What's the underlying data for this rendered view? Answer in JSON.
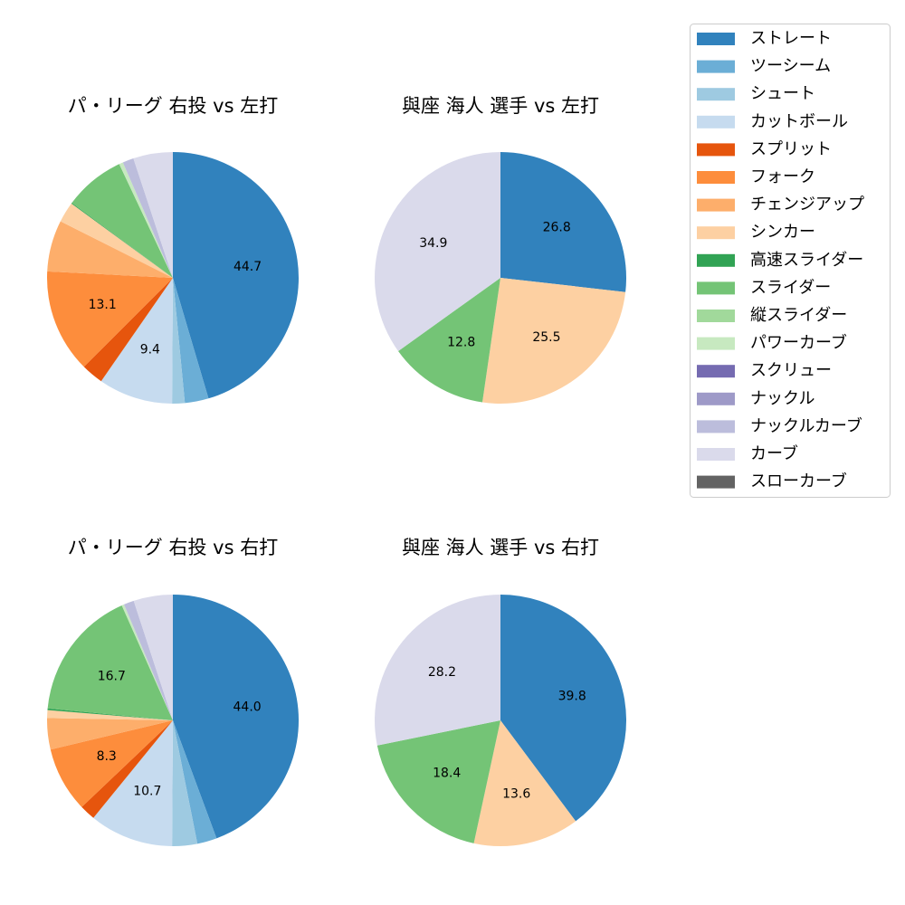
{
  "legend": {
    "placement": "top-right",
    "entries": [
      {
        "label": "ストレート",
        "color": "#3182bd"
      },
      {
        "label": "ツーシーム",
        "color": "#6baed6"
      },
      {
        "label": "シュート",
        "color": "#9ecae1"
      },
      {
        "label": "カットボール",
        "color": "#c6dbef"
      },
      {
        "label": "スプリット",
        "color": "#e6550d"
      },
      {
        "label": "フォーク",
        "color": "#fd8d3c"
      },
      {
        "label": "チェンジアップ",
        "color": "#fdae6b"
      },
      {
        "label": "シンカー",
        "color": "#fdd0a2"
      },
      {
        "label": "高速スライダー",
        "color": "#31a354"
      },
      {
        "label": "スライダー",
        "color": "#74c476"
      },
      {
        "label": "縦スライダー",
        "color": "#a1d99b"
      },
      {
        "label": "パワーカーブ",
        "color": "#c7e9c0"
      },
      {
        "label": "スクリュー",
        "color": "#756bb1"
      },
      {
        "label": "ナックル",
        "color": "#9e9ac8"
      },
      {
        "label": "ナックルカーブ",
        "color": "#bcbddc"
      },
      {
        "label": "カーブ",
        "color": "#dadaeb"
      },
      {
        "label": "スローカーブ",
        "color": "#636363"
      }
    ]
  },
  "chart_data": [
    {
      "type": "pie",
      "title": "パ・リーグ 右投 vs 左打",
      "start_angle_deg": 90,
      "direction": "clockwise",
      "label_threshold": 8,
      "slices": [
        {
          "label": "ストレート",
          "value": 44.7
        },
        {
          "label": "ツーシーム",
          "value": 3.0
        },
        {
          "label": "シュート",
          "value": 1.6
        },
        {
          "label": "カットボール",
          "value": 9.4
        },
        {
          "label": "スプリット",
          "value": 2.8
        },
        {
          "label": "フォーク",
          "value": 13.1
        },
        {
          "label": "チェンジアップ",
          "value": 6.5
        },
        {
          "label": "シンカー",
          "value": 2.6
        },
        {
          "label": "高速スライダー",
          "value": 0.1
        },
        {
          "label": "スライダー",
          "value": 7.7
        },
        {
          "label": "パワーカーブ",
          "value": 0.5
        },
        {
          "label": "ナックルカーブ",
          "value": 1.4
        },
        {
          "label": "カーブ",
          "value": 5.0
        }
      ]
    },
    {
      "type": "pie",
      "title": "與座 海人 選手 vs 左打",
      "start_angle_deg": 90,
      "direction": "clockwise",
      "label_threshold": 8,
      "slices": [
        {
          "label": "ストレート",
          "value": 26.8
        },
        {
          "label": "シンカー",
          "value": 25.5
        },
        {
          "label": "スライダー",
          "value": 12.8
        },
        {
          "label": "カーブ",
          "value": 34.9
        }
      ]
    },
    {
      "type": "pie",
      "title": "パ・リーグ 右投 vs 右打",
      "start_angle_deg": 90,
      "direction": "clockwise",
      "label_threshold": 8,
      "slices": [
        {
          "label": "ストレート",
          "value": 44.0
        },
        {
          "label": "ツーシーム",
          "value": 2.5
        },
        {
          "label": "シュート",
          "value": 3.2
        },
        {
          "label": "カットボール",
          "value": 10.7
        },
        {
          "label": "スプリット",
          "value": 2.0
        },
        {
          "label": "フォーク",
          "value": 8.3
        },
        {
          "label": "チェンジアップ",
          "value": 4.0
        },
        {
          "label": "シンカー",
          "value": 1.0
        },
        {
          "label": "高速スライダー",
          "value": 0.2
        },
        {
          "label": "スライダー",
          "value": 16.7
        },
        {
          "label": "パワーカーブ",
          "value": 0.3
        },
        {
          "label": "ナックルカーブ",
          "value": 1.3
        },
        {
          "label": "カーブ",
          "value": 5.0
        }
      ]
    },
    {
      "type": "pie",
      "title": "與座 海人 選手 vs 右打",
      "start_angle_deg": 90,
      "direction": "clockwise",
      "label_threshold": 8,
      "slices": [
        {
          "label": "ストレート",
          "value": 39.8
        },
        {
          "label": "シンカー",
          "value": 13.6
        },
        {
          "label": "スライダー",
          "value": 18.4
        },
        {
          "label": "カーブ",
          "value": 28.2
        }
      ]
    }
  ]
}
